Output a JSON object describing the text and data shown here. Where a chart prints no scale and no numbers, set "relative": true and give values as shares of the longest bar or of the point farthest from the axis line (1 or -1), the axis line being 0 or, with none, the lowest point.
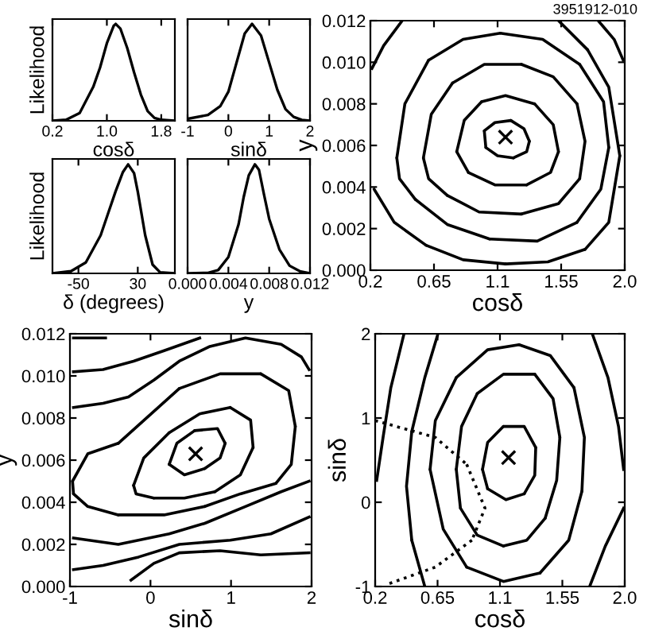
{
  "chart_data": [
    {
      "type": "line",
      "relative": true,
      "ylabel": "Likelihood",
      "xlabel": "cosδ",
      "xlim": [
        0.2,
        2.0
      ],
      "xticks": [
        0.2,
        {
          "value": 1.0,
          "label": "1.0"
        },
        1.8
      ],
      "tick_labels": "x",
      "series": [
        {
          "color": "#000000",
          "x": [
            0.2,
            0.4,
            0.6,
            0.8,
            0.9,
            1.0,
            1.1,
            1.13,
            1.2,
            1.3,
            1.4,
            1.5,
            1.6,
            1.7,
            1.8,
            2.0
          ],
          "values": [
            0,
            0.01,
            0.08,
            0.35,
            0.55,
            0.8,
            0.98,
            1,
            0.95,
            0.75,
            0.5,
            0.27,
            0.1,
            0.03,
            0.01,
            0
          ]
        }
      ]
    },
    {
      "type": "line",
      "relative": true,
      "xlabel": "sinδ",
      "xlim": [
        -1,
        2
      ],
      "xticks": [
        -1,
        0,
        1,
        2
      ],
      "tick_labels": "x",
      "series": [
        {
          "color": "#000000",
          "x": [
            -1,
            -0.5,
            -0.2,
            0,
            0.2,
            0.4,
            0.58,
            0.8,
            1.0,
            1.2,
            1.4,
            1.6,
            1.8,
            2.0
          ],
          "values": [
            0.02,
            0.06,
            0.15,
            0.3,
            0.6,
            0.9,
            1,
            0.88,
            0.6,
            0.32,
            0.12,
            0.04,
            0.01,
            0
          ]
        }
      ]
    },
    {
      "type": "line",
      "relative": true,
      "ylabel": "Likelihood",
      "xlabel": "δ (degrees)",
      "xlim": [
        -85,
        80
      ],
      "xticks": [
        -50,
        30
      ],
      "tick_labels": "x",
      "series": [
        {
          "color": "#000000",
          "x": [
            -85,
            -60,
            -40,
            -20,
            -10,
            0,
            10,
            17,
            25,
            30,
            40,
            50,
            60,
            80
          ],
          "values": [
            0,
            0.02,
            0.1,
            0.35,
            0.55,
            0.75,
            0.93,
            1,
            0.92,
            0.75,
            0.35,
            0.08,
            0.01,
            0
          ]
        }
      ]
    },
    {
      "type": "line",
      "relative": true,
      "xlabel": "y",
      "xlim": [
        0,
        0.012
      ],
      "xticks": [
        {
          "value": 0,
          "label": "0.000"
        },
        {
          "value": 0.004,
          "label": "0.004"
        },
        {
          "value": 0.008,
          "label": "0.008"
        },
        {
          "value": 0.012,
          "label": "0.012"
        }
      ],
      "tick_labels": "x",
      "series": [
        {
          "color": "#000000",
          "x": [
            0,
            0.002,
            0.003,
            0.004,
            0.005,
            0.0055,
            0.006,
            0.0066,
            0.007,
            0.0075,
            0.008,
            0.009,
            0.01,
            0.011,
            0.012
          ],
          "values": [
            0,
            0.005,
            0.03,
            0.15,
            0.45,
            0.7,
            0.9,
            1,
            0.95,
            0.72,
            0.5,
            0.22,
            0.07,
            0.02,
            0
          ]
        }
      ]
    },
    {
      "type": "line",
      "xlabel": "cosδ",
      "ylabel": "y",
      "annotations": [
        "3951912-010"
      ],
      "xlim": [
        0.2,
        2.0
      ],
      "ylim": [
        0,
        0.012
      ],
      "xticks": [
        {
          "value": 0.2,
          "label": "0.2"
        },
        {
          "value": 0.65,
          "label": "0.65"
        },
        {
          "value": 1.1,
          "label": "1.1"
        },
        {
          "value": 1.55,
          "label": "1.55"
        },
        {
          "value": 2.0,
          "label": "2.0"
        }
      ],
      "yticks": [
        {
          "value": 0,
          "label": "0.000"
        },
        {
          "value": 0.002,
          "label": "0.002"
        },
        {
          "value": 0.004,
          "label": "0.004"
        },
        {
          "value": 0.006,
          "label": "0.006"
        },
        {
          "value": 0.008,
          "label": "0.008"
        },
        {
          "value": 0.01,
          "label": "0.010"
        },
        {
          "value": 0.012,
          "label": "0.012"
        }
      ],
      "series": [
        {
          "color": "#000000",
          "x": [
            0.211,
            0.294,
            0.425
          ],
          "values": [
            0.0097,
            0.0108,
            0.012
          ]
        },
        {
          "color": "#000000",
          "x": [
            1.812,
            1.925,
            1.989
          ],
          "values": [
            0.012,
            0.0111,
            0.0101
          ]
        },
        {
          "type": "scatter",
          "marker": "cross",
          "color": "#000000",
          "x": [
            1.156
          ],
          "values": [
            0.0064
          ]
        }
      ]
    },
    {
      "type": "line",
      "xlabel": "sinδ",
      "ylabel": "y",
      "xlim": [
        -1,
        2
      ],
      "ylim": [
        0,
        0.012
      ],
      "xticks": [
        -1,
        0,
        1,
        2
      ],
      "yticks": [
        {
          "value": 0,
          "label": "0.000"
        },
        {
          "value": 0.002,
          "label": "0.002"
        },
        {
          "value": 0.004,
          "label": "0.004"
        },
        {
          "value": 0.006,
          "label": "0.006"
        },
        {
          "value": 0.008,
          "label": "0.008"
        },
        {
          "value": 0.01,
          "label": "0.010"
        },
        {
          "value": 0.012,
          "label": "0.012"
        }
      ],
      "series": [
        {
          "color": "#000000",
          "x": [
            -0.956,
            -0.558
          ],
          "values": [
            0.0118,
            0.0118
          ]
        },
        {
          "color": "#000000",
          "x": [
            -0.956,
            -0.589,
            -0.21,
            0.169,
            0.611
          ],
          "values": [
            0.0102,
            0.0103,
            0.0107,
            0.0112,
            0.0118
          ]
        },
        {
          "color": "#000000",
          "x": [
            -0.956,
            -0.589,
            -0.274,
            0.042,
            0.358,
            0.737,
            1.179,
            1.622,
            1.874,
            1.969
          ],
          "values": [
            0.0085,
            0.0087,
            0.009,
            0.0098,
            0.0107,
            0.0114,
            0.0118,
            0.0115,
            0.0109,
            0.0103
          ]
        },
        {
          "color": "#000000",
          "x": [
            -0.956,
            -0.4,
            0.232,
            0.674,
            1.179,
            1.622,
            1.969
          ],
          "values": [
            0.0023,
            0.002,
            0.0025,
            0.003,
            0.0038,
            0.0045,
            0.005
          ]
        },
        {
          "color": "#000000",
          "x": [
            -0.956,
            -0.589,
            -0.147,
            0.358,
            0.99,
            1.495,
            1.969
          ],
          "values": [
            0.0008,
            0.001,
            0.0014,
            0.002,
            0.0022,
            0.0025,
            0.0033
          ]
        },
        {
          "color": "#000000",
          "x": [
            -0.242,
            0.042,
            0.358,
            0.864,
            1.369,
            1.969
          ],
          "values": [
            0.0003,
            0.0011,
            0.0016,
            0.0017,
            0.0015,
            0.0016
          ]
        },
        {
          "type": "scatter",
          "marker": "cross",
          "color": "#000000",
          "x": [
            0.56
          ],
          "values": [
            0.0063
          ]
        }
      ]
    },
    {
      "type": "line",
      "xlabel": "cosδ",
      "ylabel": "sinδ",
      "xlim": [
        0.2,
        2.0
      ],
      "ylim": [
        -1,
        2
      ],
      "xticks": [
        {
          "value": 0.2,
          "label": "0.2"
        },
        {
          "value": 0.65,
          "label": "0.65"
        },
        {
          "value": 1.1,
          "label": "1.1"
        },
        {
          "value": 1.55,
          "label": "1.55"
        },
        {
          "value": 2.0,
          "label": "2.0"
        }
      ],
      "yticks": [
        -1,
        0,
        1,
        2
      ],
      "series": [
        {
          "color": "#000000",
          "x": [
            0.211,
            0.257,
            0.313,
            0.408
          ],
          "values": [
            0.26,
            0.77,
            1.36,
            2.0
          ]
        },
        {
          "color": "#000000",
          "x": [
            1.766,
            1.879,
            1.955,
            1.992
          ],
          "values": [
            2.0,
            1.48,
            0.9,
            0.39
          ]
        },
        {
          "color": "#000000",
          "x": [
            1.747,
            1.86,
            1.992
          ],
          "values": [
            -1.0,
            -0.52,
            -0.07
          ]
        },
        {
          "type": "scatter",
          "marker": "cross",
          "color": "#000000",
          "x": [
            1.162
          ],
          "values": [
            0.53
          ]
        }
      ]
    }
  ]
}
